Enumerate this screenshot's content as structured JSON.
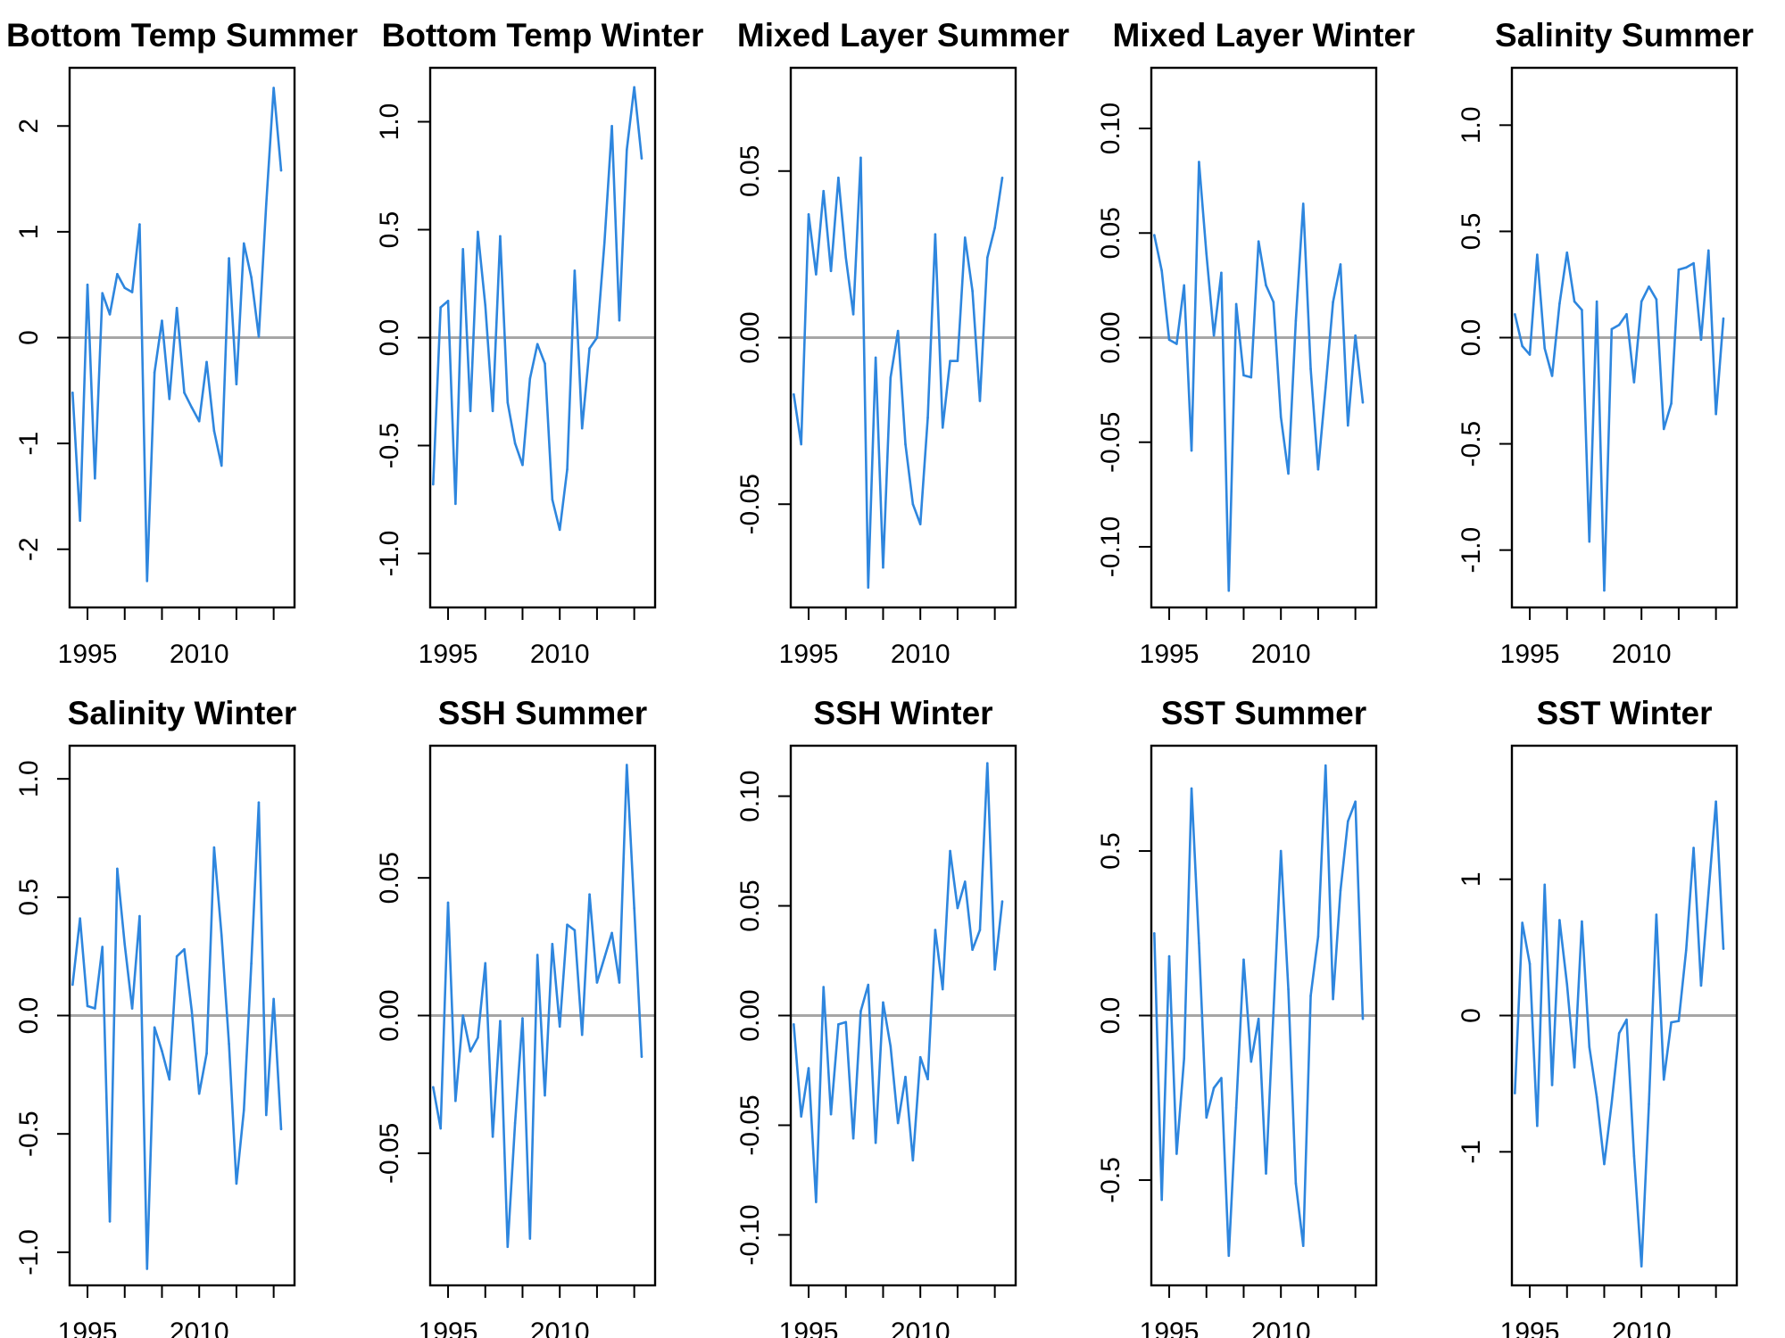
{
  "colors": {
    "series": "#2E86DE",
    "zero_line": "#A6A6A6",
    "frame": "#000000"
  },
  "chart_data": [
    {
      "type": "line",
      "title": "Bottom Temp Summer",
      "xlabel": "",
      "ylabel": "",
      "x_start": 1993,
      "x_step": 1,
      "xlim": [
        1992.6,
        2022.8
      ],
      "ylim": [
        -2.55,
        2.55
      ],
      "xticks": [
        1995,
        2000,
        2005,
        2010,
        2015,
        2020
      ],
      "xtick_labels": [
        "1995",
        "",
        "",
        "2010",
        "",
        ""
      ],
      "yticks": [
        -2,
        -1,
        0,
        1,
        2
      ],
      "ytick_labels": [
        "-2",
        "-1",
        "0",
        "1",
        "2"
      ],
      "zero_line": 0,
      "values": [
        -0.52,
        -1.73,
        0.5,
        -1.33,
        0.42,
        0.22,
        0.6,
        0.47,
        0.43,
        1.07,
        -2.3,
        -0.33,
        0.16,
        -0.58,
        0.28,
        -0.52,
        -0.66,
        -0.79,
        -0.23,
        -0.88,
        -1.21,
        0.75,
        -0.44,
        0.89,
        0.57,
        0.01,
        1.26,
        2.36,
        1.58
      ]
    },
    {
      "type": "line",
      "title": "Bottom Temp Winter",
      "xlabel": "",
      "ylabel": "",
      "x_start": 1993,
      "x_step": 1,
      "xlim": [
        1992.6,
        2022.8
      ],
      "ylim": [
        -1.25,
        1.25
      ],
      "xticks": [
        1995,
        2000,
        2005,
        2010,
        2015,
        2020
      ],
      "xtick_labels": [
        "1995",
        "",
        "",
        "2010",
        "",
        ""
      ],
      "yticks": [
        -1.0,
        -0.5,
        0.0,
        0.5,
        1.0
      ],
      "ytick_labels": [
        "-1.0",
        "-0.5",
        "0.0",
        "0.5",
        "1.0"
      ],
      "zero_line": 0,
      "values": [
        -0.68,
        0.14,
        0.17,
        -0.77,
        0.41,
        -0.34,
        0.49,
        0.15,
        -0.34,
        0.47,
        -0.3,
        -0.49,
        -0.59,
        -0.19,
        -0.03,
        -0.12,
        -0.75,
        -0.89,
        -0.61,
        0.31,
        -0.42,
        -0.05,
        0.0,
        0.44,
        0.98,
        0.08,
        0.87,
        1.16,
        0.83
      ]
    },
    {
      "type": "line",
      "title": "Mixed Layer Summer",
      "xlabel": "",
      "ylabel": "",
      "x_start": 1993,
      "x_step": 1,
      "xlim": [
        1992.6,
        2022.8
      ],
      "ylim": [
        -0.081,
        0.081
      ],
      "xticks": [
        1995,
        2000,
        2005,
        2010,
        2015,
        2020
      ],
      "xtick_labels": [
        "1995",
        "",
        "",
        "2010",
        "",
        ""
      ],
      "yticks": [
        -0.05,
        0.0,
        0.05
      ],
      "ytick_labels": [
        "-0.05",
        "0.00",
        "0.05"
      ],
      "zero_line": 0,
      "values": [
        -0.017,
        -0.032,
        0.037,
        0.019,
        0.044,
        0.02,
        0.048,
        0.024,
        0.007,
        0.054,
        -0.075,
        -0.006,
        -0.069,
        -0.012,
        0.002,
        -0.032,
        -0.05,
        -0.056,
        -0.024,
        0.031,
        -0.027,
        -0.007,
        -0.007,
        0.03,
        0.014,
        -0.019,
        0.024,
        0.033,
        0.048
      ]
    },
    {
      "type": "line",
      "title": "Mixed Layer Winter",
      "xlabel": "",
      "ylabel": "",
      "x_start": 1993,
      "x_step": 1,
      "xlim": [
        1992.6,
        2022.8
      ],
      "ylim": [
        -0.129,
        0.129
      ],
      "xticks": [
        1995,
        2000,
        2005,
        2010,
        2015,
        2020
      ],
      "xtick_labels": [
        "1995",
        "",
        "",
        "2010",
        "",
        ""
      ],
      "yticks": [
        -0.1,
        -0.05,
        0.0,
        0.05,
        0.1
      ],
      "ytick_labels": [
        "-0.10",
        "-0.05",
        "0.00",
        "0.05",
        "0.10"
      ],
      "zero_line": 0,
      "values": [
        0.049,
        0.032,
        -0.001,
        -0.003,
        0.025,
        -0.054,
        0.084,
        0.04,
        0.001,
        0.031,
        -0.121,
        0.016,
        -0.018,
        -0.019,
        0.046,
        0.025,
        0.017,
        -0.038,
        -0.065,
        0.008,
        0.064,
        -0.015,
        -0.063,
        -0.024,
        0.017,
        0.035,
        -0.042,
        0.001,
        -0.031
      ]
    },
    {
      "type": "line",
      "title": "Salinity Summer",
      "xlabel": "",
      "ylabel": "",
      "x_start": 1993,
      "x_step": 1,
      "xlim": [
        1992.6,
        2022.8
      ],
      "ylim": [
        -1.27,
        1.27
      ],
      "xticks": [
        1995,
        2000,
        2005,
        2010,
        2015,
        2020
      ],
      "xtick_labels": [
        "1995",
        "",
        "",
        "2010",
        "",
        ""
      ],
      "yticks": [
        -1.0,
        -0.5,
        0.0,
        0.5,
        1.0
      ],
      "ytick_labels": [
        "-1.0",
        "-0.5",
        "0.0",
        "0.5",
        "1.0"
      ],
      "zero_line": 0,
      "values": [
        0.11,
        -0.04,
        -0.08,
        0.39,
        -0.05,
        -0.18,
        0.16,
        0.4,
        0.17,
        0.13,
        -0.96,
        0.17,
        -1.19,
        0.04,
        0.06,
        0.11,
        -0.21,
        0.17,
        0.24,
        0.18,
        -0.43,
        -0.31,
        0.32,
        0.33,
        0.35,
        -0.01,
        0.41,
        -0.36,
        0.09
      ]
    },
    {
      "type": "line",
      "title": "Salinity Winter",
      "xlabel": "",
      "ylabel": "",
      "x_start": 1993,
      "x_step": 1,
      "xlim": [
        1992.6,
        2022.8
      ],
      "ylim": [
        -1.14,
        1.14
      ],
      "xticks": [
        1995,
        2000,
        2005,
        2010,
        2015,
        2020
      ],
      "xtick_labels": [
        "1995",
        "",
        "",
        "2010",
        "",
        ""
      ],
      "yticks": [
        -1.0,
        -0.5,
        0.0,
        0.5,
        1.0
      ],
      "ytick_labels": [
        "-1.0",
        "-0.5",
        "0.0",
        "0.5",
        "1.0"
      ],
      "zero_line": 0,
      "values": [
        0.13,
        0.41,
        0.04,
        0.03,
        0.29,
        -0.87,
        0.62,
        0.3,
        0.03,
        0.42,
        -1.07,
        -0.05,
        -0.15,
        -0.27,
        0.25,
        0.28,
        0.02,
        -0.33,
        -0.16,
        0.71,
        0.34,
        -0.12,
        -0.71,
        -0.4,
        0.22,
        0.9,
        -0.42,
        0.07,
        -0.48
      ]
    },
    {
      "type": "line",
      "title": "SSH Summer",
      "xlabel": "",
      "ylabel": "",
      "x_start": 1993,
      "x_step": 1,
      "xlim": [
        1992.6,
        2022.8
      ],
      "ylim": [
        -0.098,
        0.098
      ],
      "xticks": [
        1995,
        2000,
        2005,
        2010,
        2015,
        2020
      ],
      "xtick_labels": [
        "1995",
        "",
        "",
        "2010",
        "",
        ""
      ],
      "yticks": [
        -0.05,
        0.0,
        0.05
      ],
      "ytick_labels": [
        "-0.05",
        "0.00",
        "0.05"
      ],
      "zero_line": 0,
      "values": [
        -0.026,
        -0.041,
        0.041,
        -0.031,
        0.0,
        -0.013,
        -0.008,
        0.019,
        -0.044,
        -0.002,
        -0.084,
        -0.039,
        -0.001,
        -0.081,
        0.022,
        -0.029,
        0.026,
        -0.004,
        0.033,
        0.031,
        -0.007,
        0.044,
        0.012,
        0.021,
        0.03,
        0.012,
        0.091,
        0.039,
        -0.015
      ]
    },
    {
      "type": "line",
      "title": "SSH Winter",
      "xlabel": "",
      "ylabel": "",
      "x_start": 1993,
      "x_step": 1,
      "xlim": [
        1992.6,
        2022.8
      ],
      "ylim": [
        -0.123,
        0.123
      ],
      "xticks": [
        1995,
        2000,
        2005,
        2010,
        2015,
        2020
      ],
      "xtick_labels": [
        "1995",
        "",
        "",
        "2010",
        "",
        ""
      ],
      "yticks": [
        -0.1,
        -0.05,
        0.0,
        0.05,
        0.1
      ],
      "ytick_labels": [
        "-0.10",
        "-0.05",
        "0.00",
        "0.05",
        "0.10"
      ],
      "zero_line": 0,
      "values": [
        -0.004,
        -0.046,
        -0.024,
        -0.085,
        0.013,
        -0.045,
        -0.004,
        -0.003,
        -0.056,
        0.002,
        0.014,
        -0.058,
        0.006,
        -0.014,
        -0.049,
        -0.028,
        -0.066,
        -0.019,
        -0.029,
        0.039,
        0.012,
        0.075,
        0.049,
        0.061,
        0.03,
        0.039,
        0.115,
        0.021,
        0.052
      ]
    },
    {
      "type": "line",
      "title": "SST Summer",
      "xlabel": "",
      "ylabel": "",
      "x_start": 1993,
      "x_step": 1,
      "xlim": [
        1992.6,
        2022.8
      ],
      "ylim": [
        -0.82,
        0.82
      ],
      "xticks": [
        1995,
        2000,
        2005,
        2010,
        2015,
        2020
      ],
      "xtick_labels": [
        "1995",
        "",
        "",
        "2010",
        "",
        ""
      ],
      "yticks": [
        -0.5,
        0.0,
        0.5
      ],
      "ytick_labels": [
        "-0.5",
        "0.0",
        "0.5"
      ],
      "zero_line": 0,
      "values": [
        0.25,
        -0.56,
        0.18,
        -0.42,
        -0.13,
        0.69,
        0.22,
        -0.31,
        -0.22,
        -0.19,
        -0.73,
        -0.28,
        0.17,
        -0.14,
        -0.01,
        -0.48,
        0.01,
        0.5,
        0.08,
        -0.51,
        -0.7,
        0.06,
        0.24,
        0.76,
        0.05,
        0.38,
        0.59,
        0.65,
        -0.01
      ]
    },
    {
      "type": "line",
      "title": "SST Winter",
      "xlabel": "",
      "ylabel": "",
      "x_start": 1993,
      "x_step": 1,
      "xlim": [
        1992.6,
        2022.8
      ],
      "ylim": [
        -1.98,
        1.98
      ],
      "xticks": [
        1995,
        2000,
        2005,
        2010,
        2015,
        2020
      ],
      "xtick_labels": [
        "1995",
        "",
        "",
        "2010",
        "",
        ""
      ],
      "yticks": [
        -1,
        0,
        1
      ],
      "ytick_labels": [
        "-1",
        "0",
        "1"
      ],
      "zero_line": 0,
      "values": [
        -0.57,
        0.68,
        0.38,
        -0.81,
        0.96,
        -0.51,
        0.7,
        0.23,
        -0.38,
        0.69,
        -0.23,
        -0.6,
        -1.09,
        -0.64,
        -0.13,
        -0.03,
        -1.03,
        -1.84,
        -0.65,
        0.74,
        -0.47,
        -0.05,
        -0.04,
        0.48,
        1.23,
        0.22,
        0.9,
        1.57,
        0.49
      ]
    }
  ]
}
